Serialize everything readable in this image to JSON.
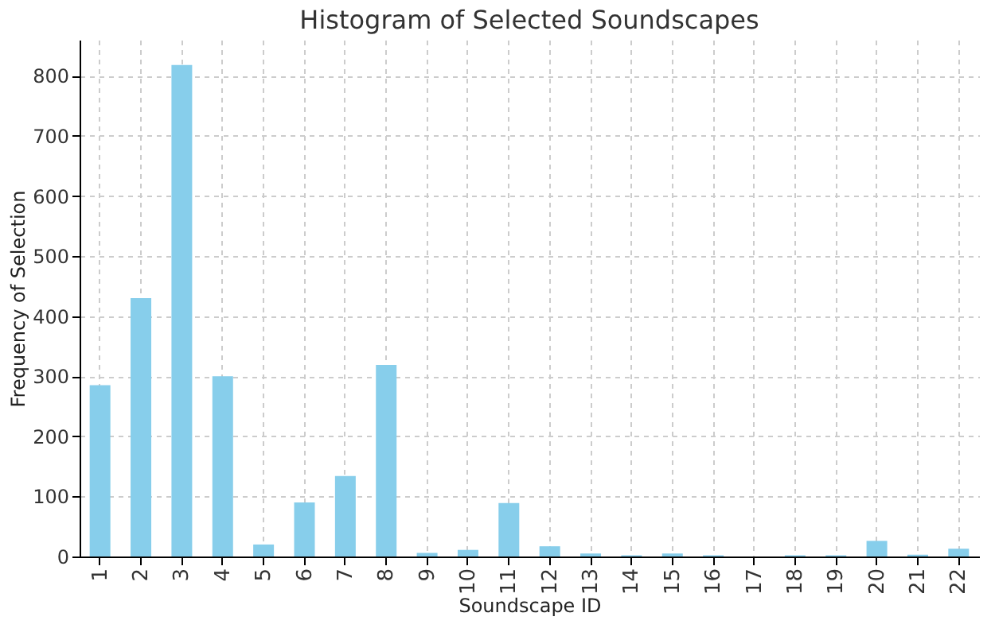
{
  "chart_data": {
    "type": "bar",
    "title": "Histogram of Selected Soundscapes",
    "xlabel": "Soundscape ID",
    "ylabel": "Frequency of Selection",
    "categories": [
      "1",
      "2",
      "3",
      "4",
      "5",
      "6",
      "7",
      "8",
      "9",
      "10",
      "11",
      "12",
      "13",
      "14",
      "15",
      "16",
      "17",
      "18",
      "19",
      "20",
      "21",
      "22"
    ],
    "values": [
      285,
      430,
      818,
      300,
      20,
      90,
      134,
      319,
      6,
      11,
      89,
      17,
      5,
      2,
      5,
      2,
      0,
      2,
      2,
      26,
      3,
      13
    ],
    "color": "#87ceeb",
    "ylim": [
      0,
      860
    ],
    "yticks": [
      0,
      100,
      200,
      300,
      400,
      500,
      600,
      700,
      800
    ],
    "grid": true
  }
}
